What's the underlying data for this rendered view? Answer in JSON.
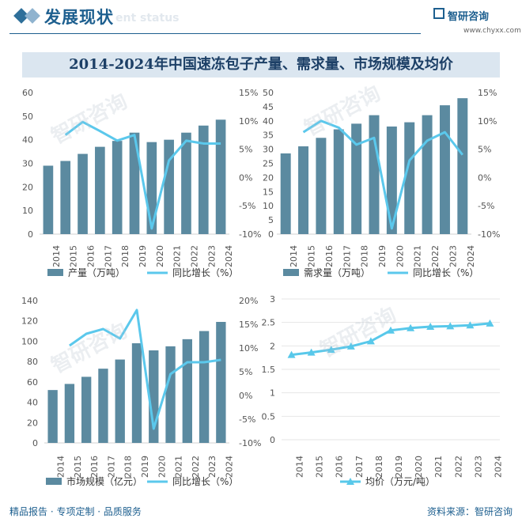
{
  "header": {
    "title": "发展现状",
    "subtitle": "ent status",
    "brand": "智研咨询",
    "url": "www.chyxx.com"
  },
  "title": "2014-2024年中国速冻包子产量、需求量、市场规模及均价",
  "footer": {
    "left": "精品报告 · 专项定制 · 品质服务",
    "right": "资料来源：智研咨询"
  },
  "watermark": "智研咨询",
  "colors": {
    "bar": "#5b8aa0",
    "line": "#5bc8ec",
    "marker_line": "#58c8ea"
  },
  "chart_data": [
    {
      "type": "bar",
      "categories": [
        "2014",
        "2015",
        "2016",
        "2017",
        "2018",
        "2019",
        "2020",
        "2021",
        "2022",
        "2023",
        "2024"
      ],
      "series": [
        {
          "name": "产量（万吨）",
          "axis": "left",
          "values": [
            29,
            31,
            34,
            37,
            39.5,
            43,
            39,
            40,
            43,
            46,
            48.5
          ]
        },
        {
          "name": "同比增长（%）",
          "axis": "right",
          "render": "line",
          "values": [
            null,
            7.5,
            9.8,
            8.2,
            6.5,
            7.5,
            -9.0,
            3.0,
            6.5,
            6.0,
            6.0
          ]
        }
      ],
      "left_ticks": [
        "0",
        "10",
        "20",
        "30",
        "40",
        "50",
        "60"
      ],
      "ylim": [
        0,
        60
      ],
      "right_ticks": [
        "-10%",
        "-5%",
        "0%",
        "5%",
        "10%",
        "15%"
      ],
      "y2lim": [
        -10,
        15
      ]
    },
    {
      "type": "bar",
      "categories": [
        "2014",
        "2015",
        "2016",
        "2017",
        "2018",
        "2019",
        "2020",
        "2021",
        "2022",
        "2023",
        "2024"
      ],
      "series": [
        {
          "name": "需求量（万吨）",
          "axis": "left",
          "values": [
            28.5,
            31,
            34,
            37,
            39,
            42,
            38,
            39.5,
            42,
            45.5,
            48
          ]
        },
        {
          "name": "同比增长（%）",
          "axis": "right",
          "render": "line",
          "values": [
            null,
            8.0,
            10.0,
            8.8,
            5.8,
            7.0,
            -9.0,
            3.0,
            6.5,
            8.0,
            4.0
          ]
        }
      ],
      "left_ticks": [
        "0",
        "5",
        "10",
        "15",
        "20",
        "25",
        "30",
        "35",
        "40",
        "45",
        "50"
      ],
      "ylim": [
        0,
        50
      ],
      "right_ticks": [
        "-10%",
        "-5%",
        "0%",
        "5%",
        "10%",
        "15%"
      ],
      "y2lim": [
        -10,
        15
      ]
    },
    {
      "type": "bar",
      "categories": [
        "2014",
        "2015",
        "2016",
        "2017",
        "2018",
        "2019",
        "2020",
        "2021",
        "2022",
        "2023",
        "2024"
      ],
      "series": [
        {
          "name": "市场规模（亿元）",
          "axis": "left",
          "values": [
            52,
            58,
            65,
            73,
            82,
            98,
            91,
            95,
            102,
            110,
            119
          ]
        },
        {
          "name": "同比增长（%）",
          "axis": "right",
          "render": "line",
          "values": [
            null,
            10.5,
            13.0,
            14.0,
            12.0,
            18.0,
            -7.0,
            4.5,
            7.0,
            7.0,
            7.5
          ]
        }
      ],
      "left_ticks": [
        "0",
        "20",
        "40",
        "60",
        "80",
        "100",
        "120",
        "140"
      ],
      "ylim": [
        0,
        140
      ],
      "right_ticks": [
        "-10%",
        "-5%",
        "0%",
        "5%",
        "10%",
        "15%",
        "20%"
      ],
      "y2lim": [
        -10,
        20
      ]
    },
    {
      "type": "line",
      "categories": [
        "2014",
        "2015",
        "2016",
        "2017",
        "2018",
        "2019",
        "2020",
        "2021",
        "2022",
        "2023",
        "2024"
      ],
      "series": [
        {
          "name": "均价（万元/吨）",
          "values": [
            1.81,
            1.86,
            1.92,
            1.99,
            2.1,
            2.33,
            2.38,
            2.41,
            2.42,
            2.44,
            2.48
          ]
        }
      ],
      "left_ticks": [
        "0",
        "0.5",
        "1",
        "1.5",
        "2",
        "2.5",
        "3"
      ],
      "ylim": [
        0,
        3
      ]
    }
  ]
}
